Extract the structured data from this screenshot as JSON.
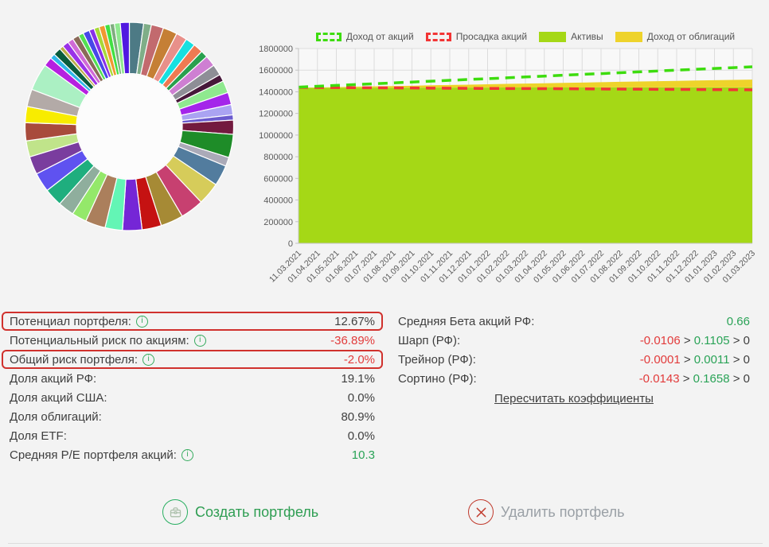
{
  "buttons": {
    "create_label": "Создать портфель",
    "delete_label": "Удалить портфель"
  },
  "stats_left": {
    "rows": [
      {
        "label": "Потенциал портфеля:",
        "info": true,
        "highlight": true,
        "value": "12.67%",
        "value_color": "dark"
      },
      {
        "label": "Потенциальный риск по акциям:",
        "info": true,
        "highlight": false,
        "value": "-36.89%",
        "value_color": "red"
      },
      {
        "label": "Общий риск портфеля:",
        "info": true,
        "highlight": true,
        "value": "-2.0%",
        "value_color": "red"
      },
      {
        "label": "Доля акций РФ:",
        "info": false,
        "highlight": false,
        "value": "19.1%",
        "value_color": "dark"
      },
      {
        "label": "Доля акций США:",
        "info": false,
        "highlight": false,
        "value": "0.0%",
        "value_color": "dark"
      },
      {
        "label": "Доля облигаций:",
        "info": false,
        "highlight": false,
        "value": "80.9%",
        "value_color": "dark"
      },
      {
        "label": "Доля ETF:",
        "info": false,
        "highlight": false,
        "value": "0.0%",
        "value_color": "dark"
      },
      {
        "label": "Средняя P/E портфеля акций:",
        "info": true,
        "highlight": false,
        "value": "10.3",
        "value_color": "green"
      }
    ]
  },
  "stats_right": {
    "rows": [
      {
        "label": "Средняя Бета акций РФ:",
        "parts": [
          {
            "text": "0.66",
            "color": "green"
          }
        ]
      },
      {
        "label": "Шарп (РФ):",
        "parts": [
          {
            "text": "-0.0106",
            "color": "red"
          },
          {
            "text": " > ",
            "color": "dark"
          },
          {
            "text": "0.1105",
            "color": "green"
          },
          {
            "text": " > 0",
            "color": "dark"
          }
        ]
      },
      {
        "label": "Трейнор (РФ):",
        "parts": [
          {
            "text": "-0.0001",
            "color": "red"
          },
          {
            "text": " > ",
            "color": "dark"
          },
          {
            "text": "0.0011",
            "color": "green"
          },
          {
            "text": " > 0",
            "color": "dark"
          }
        ]
      },
      {
        "label": "Сортино (РФ):",
        "parts": [
          {
            "text": "-0.0143",
            "color": "red"
          },
          {
            "text": " > ",
            "color": "dark"
          },
          {
            "text": "0.1658",
            "color": "green"
          },
          {
            "text": " > 0",
            "color": "dark"
          }
        ]
      }
    ],
    "link_label": "Пересчитать коэффициенты"
  },
  "legend": [
    {
      "label": "Доход от акций",
      "swatch": "dashed",
      "color": "#3ddc0e"
    },
    {
      "label": "Просадка акций",
      "swatch": "dashed",
      "color": "#f23535"
    },
    {
      "label": "Активы",
      "swatch": "solid",
      "color": "#a5d816"
    },
    {
      "label": "Доход от облигаций",
      "swatch": "solid",
      "color": "#eed32b"
    }
  ],
  "chart_data": [
    {
      "type": "pie",
      "title": "Portfolio allocation donut (no labels shown)",
      "inner_radius_ratio": 0.5,
      "values": [
        2.2,
        1.2,
        1.9,
        2.2,
        1.7,
        1.5,
        1.5,
        1.1,
        1.7,
        1.7,
        1.1,
        1.9,
        1.9,
        1.6,
        0.8,
        2.2,
        3.6,
        1.4,
        3.2,
        3.5,
        3.6,
        3.5,
        3.0,
        3.0,
        2.7,
        3.1,
        2.3,
        2.5,
        2.8,
        3.0,
        2.8,
        2.5,
        2.8,
        2.5,
        2.7,
        4.2,
        1.4,
        0.8,
        1.2,
        0.6,
        1.0,
        0.9,
        1.0,
        0.8,
        1.0,
        0.8,
        0.8,
        0.9,
        0.8,
        0.7,
        0.9,
        1.4
      ],
      "colors": [
        "#4d7a85",
        "#7fae88",
        "#c26a6e",
        "#c57f35",
        "#e8908a",
        "#16e0e0",
        "#ef7a52",
        "#2aa04e",
        "#ce7fd2",
        "#8e8e96",
        "#47183a",
        "#8fe98f",
        "#a425ea",
        "#aaa3f2",
        "#6a5ace",
        "#731a3f",
        "#1e8c28",
        "#aaaab8",
        "#527c9e",
        "#d6cc5a",
        "#c74070",
        "#a68a35",
        "#c51212",
        "#7526d6",
        "#63f5b5",
        "#ab7f5c",
        "#94e86a",
        "#8fae9d",
        "#1fae7e",
        "#5f52f0",
        "#7a3d9e",
        "#c0e48a",
        "#a84b3c",
        "#f8ec00",
        "#b3aaa7",
        "#abf0c3",
        "#b620e0",
        "#2fb7e9",
        "#0a5c3c",
        "#bcae4a",
        "#9a32e8",
        "#d06ad6",
        "#8a6a58",
        "#52e052",
        "#4747e8",
        "#8830e8",
        "#a8d838",
        "#f09830",
        "#42e042",
        "#7fae7f",
        "#8fe98f",
        "#5018e0"
      ]
    },
    {
      "type": "area",
      "x": [
        "11.03.2021",
        "01.04.2021",
        "01.05.2021",
        "01.06.2021",
        "01.07.2021",
        "01.08.2021",
        "01.09.2021",
        "01.10.2021",
        "01.11.2021",
        "01.12.2021",
        "01.01.2022",
        "01.02.2022",
        "01.03.2022",
        "01.04.2022",
        "01.05.2022",
        "01.06.2022",
        "01.07.2022",
        "01.08.2022",
        "01.09.2022",
        "01.10.2022",
        "01.11.2022",
        "01.12.2022",
        "01.01.2023",
        "01.02.2023",
        "01.03.2023"
      ],
      "ylim": [
        0,
        1800000
      ],
      "ytick_step": 200000,
      "grid": true,
      "legend_position": "top",
      "series": [
        {
          "name": "Доход от акций",
          "style": "dashed-line",
          "color": "#3ddc0e",
          "values": [
            1443000,
            1451000,
            1459000,
            1467000,
            1474000,
            1482000,
            1490000,
            1498000,
            1506000,
            1514000,
            1521000,
            1529000,
            1537000,
            1545000,
            1553000,
            1561000,
            1568000,
            1576000,
            1584000,
            1592000,
            1600000,
            1608000,
            1615000,
            1623000,
            1631000
          ]
        },
        {
          "name": "Просадка акций",
          "style": "dashed-line",
          "color": "#f23535",
          "values": [
            1441000,
            1440000,
            1439000,
            1438000,
            1437000,
            1436000,
            1435000,
            1434000,
            1433000,
            1432000,
            1431000,
            1430000,
            1430000,
            1429000,
            1428000,
            1427000,
            1426000,
            1425000,
            1424000,
            1423000,
            1422000,
            1421000,
            1420000,
            1419000,
            1418000
          ]
        },
        {
          "name": "Активы",
          "style": "area",
          "color": "#a5d816",
          "values": [
            1437000,
            1437000,
            1437000,
            1438000,
            1438000,
            1438000,
            1438000,
            1439000,
            1439000,
            1439000,
            1439000,
            1440000,
            1440000,
            1440000,
            1440000,
            1440000,
            1441000,
            1441000,
            1441000,
            1441000,
            1441000,
            1441000,
            1441000,
            1441000,
            1441000
          ]
        },
        {
          "name": "Доход от облигаций",
          "style": "area-stacked-on-assets",
          "color": "#eed32b",
          "values": [
            0,
            3000,
            6000,
            9000,
            12000,
            15000,
            18000,
            21000,
            24000,
            27000,
            30000,
            33000,
            36000,
            39000,
            42000,
            45000,
            48000,
            51000,
            54000,
            57000,
            60000,
            63000,
            66000,
            69000,
            72000
          ]
        }
      ]
    }
  ],
  "colors": {
    "highlight_border": "#d0312d",
    "positive": "#2aa357",
    "negative": "#e23b3b",
    "grid": "#dcdcdc",
    "axis_text": "#595959"
  }
}
